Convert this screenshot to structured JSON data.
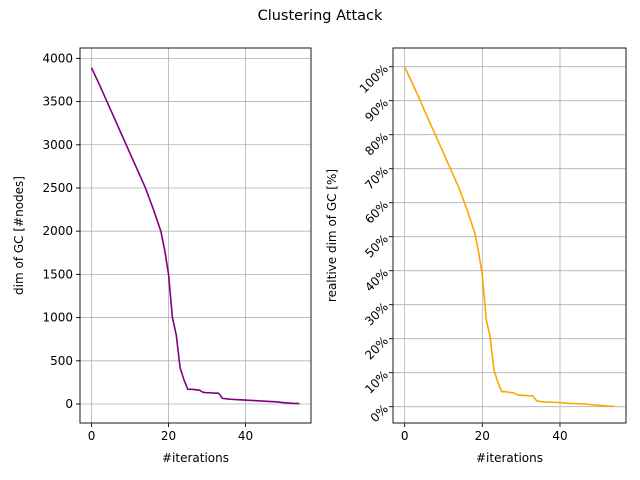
{
  "figure": {
    "title": "Clustering Attack"
  },
  "chart_data": [
    {
      "type": "line",
      "xlabel": "#iterations",
      "ylabel": "dim of GC [#nodes]",
      "xlim": [
        -3,
        57
      ],
      "ylim": [
        -220,
        4120
      ],
      "xticks": [
        0,
        20,
        40
      ],
      "yticks": [
        0,
        500,
        1000,
        1500,
        2000,
        2500,
        3000,
        3500,
        4000
      ],
      "ytick_labels": [
        "0",
        "500",
        "1000",
        "1500",
        "2000",
        "2500",
        "3000",
        "3500",
        "4000"
      ],
      "grid": true,
      "series": [
        {
          "color": "#800080",
          "x": [
            0,
            2,
            4,
            6,
            8,
            10,
            12,
            14,
            16,
            18,
            19,
            20,
            21,
            22,
            23,
            24,
            25,
            26,
            27,
            28,
            29,
            30,
            31,
            32,
            33,
            34,
            35,
            36,
            38,
            40,
            42,
            44,
            46,
            48,
            50,
            52,
            54
          ],
          "y": [
            3890,
            3700,
            3500,
            3300,
            3100,
            2900,
            2700,
            2500,
            2260,
            2000,
            1780,
            1500,
            1000,
            800,
            420,
            280,
            170,
            170,
            165,
            160,
            135,
            130,
            130,
            125,
            125,
            65,
            60,
            55,
            50,
            45,
            40,
            35,
            30,
            25,
            15,
            8,
            5
          ]
        }
      ]
    },
    {
      "type": "line",
      "xlabel": "#iterations",
      "ylabel": "realtive dim of GC [%]",
      "xlim": [
        -3,
        57
      ],
      "ylim": [
        -4.8,
        105.5
      ],
      "xticks": [
        0,
        20,
        40
      ],
      "yticks": [
        0,
        10,
        20,
        30,
        40,
        50,
        60,
        70,
        80,
        90,
        100
      ],
      "ytick_labels": [
        "0%",
        "10%",
        "20%",
        "30%",
        "40%",
        "50%",
        "60%",
        "70%",
        "80%",
        "90%",
        "100%"
      ],
      "grid": true,
      "series": [
        {
          "color": "#ffa500",
          "x": [
            0,
            2,
            4,
            6,
            8,
            10,
            12,
            14,
            16,
            18,
            19,
            20,
            21,
            22,
            23,
            24,
            25,
            26,
            27,
            28,
            29,
            30,
            31,
            32,
            33,
            34,
            35,
            36,
            38,
            40,
            42,
            44,
            46,
            48,
            50,
            52,
            54
          ],
          "y": [
            100,
            95.1,
            90.0,
            84.8,
            79.7,
            74.6,
            69.4,
            64.3,
            58.1,
            51.4,
            45.8,
            38.6,
            25.7,
            20.6,
            10.8,
            7.2,
            4.4,
            4.4,
            4.2,
            4.1,
            3.5,
            3.3,
            3.3,
            3.2,
            3.2,
            1.7,
            1.5,
            1.4,
            1.3,
            1.2,
            1.0,
            0.9,
            0.8,
            0.6,
            0.4,
            0.2,
            0.1
          ]
        }
      ]
    }
  ]
}
